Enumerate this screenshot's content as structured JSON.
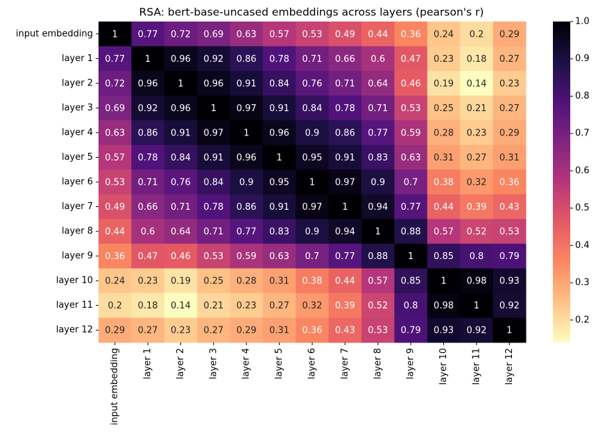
{
  "chart_data": {
    "type": "heatmap",
    "title": "RSA: bert-base-uncased embeddings across layers (pearson's r)",
    "categories": [
      "input embedding",
      "layer 1",
      "layer 2",
      "layer 3",
      "layer 4",
      "layer 5",
      "layer 6",
      "layer 7",
      "layer 8",
      "layer 9",
      "layer 10",
      "layer 11",
      "layer 12"
    ],
    "values": [
      [
        1,
        0.77,
        0.72,
        0.69,
        0.63,
        0.57,
        0.53,
        0.49,
        0.44,
        0.36,
        0.24,
        0.2,
        0.29
      ],
      [
        0.77,
        1,
        0.96,
        0.92,
        0.86,
        0.78,
        0.71,
        0.66,
        0.6,
        0.47,
        0.23,
        0.18,
        0.27
      ],
      [
        0.72,
        0.96,
        1,
        0.96,
        0.91,
        0.84,
        0.76,
        0.71,
        0.64,
        0.46,
        0.19,
        0.14,
        0.23
      ],
      [
        0.69,
        0.92,
        0.96,
        1,
        0.97,
        0.91,
        0.84,
        0.78,
        0.71,
        0.53,
        0.25,
        0.21,
        0.27
      ],
      [
        0.63,
        0.86,
        0.91,
        0.97,
        1,
        0.96,
        0.9,
        0.86,
        0.77,
        0.59,
        0.28,
        0.23,
        0.29
      ],
      [
        0.57,
        0.78,
        0.84,
        0.91,
        0.96,
        1,
        0.95,
        0.91,
        0.83,
        0.63,
        0.31,
        0.27,
        0.31
      ],
      [
        0.53,
        0.71,
        0.76,
        0.84,
        0.9,
        0.95,
        1,
        0.97,
        0.9,
        0.7,
        0.38,
        0.32,
        0.36
      ],
      [
        0.49,
        0.66,
        0.71,
        0.78,
        0.86,
        0.91,
        0.97,
        1,
        0.94,
        0.77,
        0.44,
        0.39,
        0.43
      ],
      [
        0.44,
        0.6,
        0.64,
        0.71,
        0.77,
        0.83,
        0.9,
        0.94,
        1,
        0.88,
        0.57,
        0.52,
        0.53
      ],
      [
        0.36,
        0.47,
        0.46,
        0.53,
        0.59,
        0.63,
        0.7,
        0.77,
        0.88,
        1,
        0.85,
        0.8,
        0.79
      ],
      [
        0.24,
        0.23,
        0.19,
        0.25,
        0.28,
        0.31,
        0.38,
        0.44,
        0.57,
        0.85,
        1,
        0.98,
        0.93
      ],
      [
        0.2,
        0.18,
        0.14,
        0.21,
        0.23,
        0.27,
        0.32,
        0.39,
        0.52,
        0.8,
        0.98,
        1,
        0.92
      ],
      [
        0.29,
        0.27,
        0.23,
        0.27,
        0.29,
        0.31,
        0.36,
        0.43,
        0.53,
        0.79,
        0.93,
        0.92,
        1
      ]
    ],
    "colormap": "magma_r",
    "clim": [
      0.14,
      1
    ],
    "cticks": [
      0.2,
      0.3,
      0.4,
      0.5,
      0.6,
      0.7,
      0.8,
      0.9,
      {
        "value": 1,
        "label": "1.0"
      }
    ]
  }
}
